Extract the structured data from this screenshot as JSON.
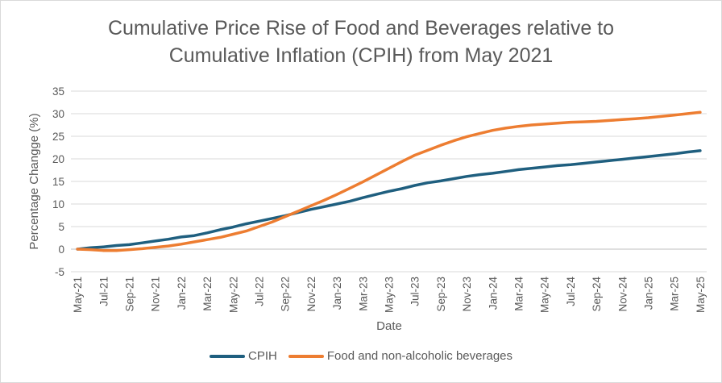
{
  "chart_data": {
    "type": "line",
    "title_lines": [
      "Cumulative Price Rise of Food and Beverages relative to",
      "Cumulative Inflation (CPIH) from May 2021"
    ],
    "xlabel": "Date",
    "ylabel": "Percentage Changge (%)",
    "ylim": [
      -5,
      35
    ],
    "yticks": [
      -5,
      0,
      5,
      10,
      15,
      20,
      25,
      30,
      35
    ],
    "grid": true,
    "legend_position": "bottom",
    "x": [
      "May-21",
      "Jun-21",
      "Jul-21",
      "Aug-21",
      "Sep-21",
      "Oct-21",
      "Nov-21",
      "Dec-21",
      "Jan-22",
      "Feb-22",
      "Mar-22",
      "Apr-22",
      "May-22",
      "Jun-22",
      "Jul-22",
      "Aug-22",
      "Sep-22",
      "Oct-22",
      "Nov-22",
      "Dec-22",
      "Jan-23",
      "Feb-23",
      "Mar-23",
      "Apr-23",
      "May-23",
      "Jun-23",
      "Jul-23",
      "Aug-23",
      "Sep-23",
      "Oct-23",
      "Nov-23",
      "Dec-23",
      "Jan-24",
      "Feb-24",
      "Mar-24",
      "Apr-24",
      "May-24",
      "Jun-24",
      "Jul-24",
      "Aug-24",
      "Sep-24",
      "Oct-24",
      "Nov-24",
      "Dec-24",
      "Jan-25",
      "Feb-25",
      "Mar-25",
      "Apr-25",
      "May-25"
    ],
    "x_tick_labels": [
      "May-21",
      "Jul-21",
      "Sep-21",
      "Nov-21",
      "Jan-22",
      "Mar-22",
      "May-22",
      "Jul-22",
      "Sep-22",
      "Nov-22",
      "Jan-23",
      "Mar-23",
      "May-23",
      "Jul-23",
      "Sep-23",
      "Nov-23",
      "Jan-24",
      "Mar-24",
      "May-24",
      "Jul-24",
      "Sep-24",
      "Nov-24",
      "Jan-25",
      "Mar-25",
      "May-25"
    ],
    "series": [
      {
        "name": "CPIH",
        "color": "#1f5f7f",
        "values": [
          0,
          0.3,
          0.5,
          0.8,
          1.0,
          1.4,
          1.8,
          2.2,
          2.7,
          3.0,
          3.6,
          4.3,
          4.9,
          5.6,
          6.2,
          6.8,
          7.4,
          8.1,
          8.8,
          9.4,
          10.0,
          10.6,
          11.4,
          12.1,
          12.8,
          13.4,
          14.1,
          14.7,
          15.1,
          15.6,
          16.1,
          16.5,
          16.8,
          17.2,
          17.6,
          17.9,
          18.2,
          18.5,
          18.7,
          19.0,
          19.3,
          19.6,
          19.9,
          20.2,
          20.5,
          20.8,
          21.1,
          21.5,
          21.8
        ]
      },
      {
        "name": "Food and non-alcoholic beverages",
        "color": "#ed7d31",
        "values": [
          0,
          -0.1,
          -0.3,
          -0.3,
          -0.1,
          0.1,
          0.4,
          0.7,
          1.1,
          1.6,
          2.1,
          2.6,
          3.3,
          4.0,
          5.0,
          6.0,
          7.2,
          8.4,
          9.6,
          10.8,
          12.1,
          13.5,
          14.9,
          16.4,
          17.9,
          19.4,
          20.8,
          21.9,
          23.0,
          24.0,
          24.9,
          25.6,
          26.3,
          26.8,
          27.2,
          27.5,
          27.7,
          27.9,
          28.1,
          28.2,
          28.3,
          28.5,
          28.7,
          28.9,
          29.1,
          29.4,
          29.7,
          30.0,
          30.3
        ]
      }
    ]
  }
}
